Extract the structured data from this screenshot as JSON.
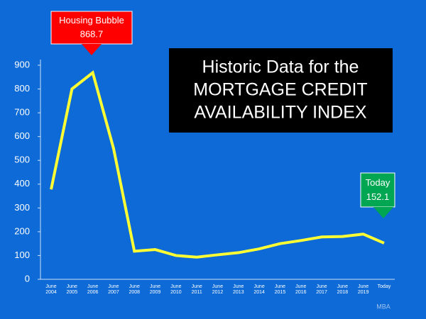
{
  "chart_data": {
    "type": "line",
    "title": [
      "Historic Data for the",
      "MORTGAGE CREDIT",
      "AVAILABILITY INDEX"
    ],
    "categories": [
      "June 2004",
      "June 2005",
      "June 2006",
      "June 2007",
      "June 2008",
      "June 2009",
      "June 2010",
      "June 2011",
      "June 2012",
      "June 2013",
      "June 2014",
      "June 2015",
      "June 2016",
      "June 2017",
      "June 2018",
      "June 2019",
      "Today"
    ],
    "series": [
      {
        "name": "Mortgage Credit Availability Index",
        "color": "#ffff33",
        "values": [
          378,
          800,
          868.7,
          550,
          118,
          125,
          100,
          93,
          103,
          112,
          128,
          150,
          163,
          178,
          180,
          190,
          152.1
        ]
      }
    ],
    "ylim": [
      0,
      900
    ],
    "yticks": [
      0,
      100,
      200,
      300,
      400,
      500,
      600,
      700,
      800,
      900
    ],
    "grid": false,
    "annotations": [
      {
        "title": "Housing Bubble",
        "label": "868.7",
        "color": "#ff0000"
      },
      {
        "title": "Today",
        "label": "152.1",
        "color": "#00a651"
      }
    ],
    "source": "MBA"
  }
}
